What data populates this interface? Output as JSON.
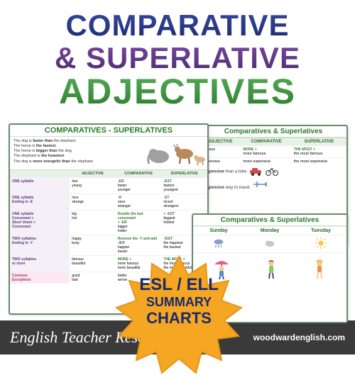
{
  "title": {
    "line1": "COMPARATIVE",
    "line2": "& SUPERLATIVE",
    "line3": "ADJECTIVES",
    "colors": {
      "comparative": "#2a3a8a",
      "superlative": "#5a3a8a",
      "adjectives": "#3a8a3a"
    }
  },
  "starburst": {
    "line1": "ESL / ELL",
    "line2": "SUMMARY",
    "line3": "CHARTS",
    "fill": "#f5a623",
    "stroke": "#d4851a",
    "text_color": "#1a2a6a"
  },
  "chart_front": {
    "header": "COMPARATIVES - SUPERLATIVES",
    "sentences": [
      {
        "pre": "The dog is ",
        "bold": "faster than",
        "post": " the elephant."
      },
      {
        "pre": "The horse is ",
        "bold": "the fastest",
        "post": "."
      },
      {
        "pre": "The horse is ",
        "bold": "bigger than",
        "post": " the dog."
      },
      {
        "pre": "The elephant is ",
        "bold": "the heaviest",
        "post": "."
      },
      {
        "pre": "The dog is ",
        "bold": "more energetic than",
        "post": " the elephant."
      }
    ],
    "columns": [
      "ADJECTIVE",
      "COMPARATIVE",
      "SUPERLATIVE"
    ],
    "rows": [
      {
        "label": "ONE syllable",
        "adj": "fast\nyoung",
        "comp_rule": "-ER",
        "comp": "faster\nyounger",
        "sup_rule": "-EST",
        "sup": "fastest\nyoungest"
      },
      {
        "label": "ONE syllable\nEnding in -E",
        "adj": "nice\nstrange",
        "comp_rule": "-R",
        "comp": "nicer\nstranger",
        "sup_rule": "-ST",
        "sup": "nicest\nstrangest"
      },
      {
        "label": "ONE syllable\nConsonant +\nShort Vowel +\nConsonant",
        "adj": "big\nhot",
        "comp_rule": "Double the last consonant\n+ -ER",
        "comp": "bigger\nhotter",
        "sup_rule": "+ -EST",
        "sup": "biggest\nhottest"
      },
      {
        "label": "TWO syllables\nEnding in -Y",
        "adj": "happy\nbusy",
        "comp_rule": "Remove the -Y and add\n-IER",
        "comp": "happier\nbusier",
        "sup_rule": "-IEST",
        "sup": "the happiest\nthe busiest"
      },
      {
        "label": "TWO syllables\nor more",
        "adj": "famous\nbeautiful",
        "comp_rule": "MORE +",
        "comp": "more famous\nmore beautiful",
        "sup_rule": "THE MOST +",
        "sup": "the most famous\nthe most beautiful"
      },
      {
        "label": "Common\nExceptions",
        "pink": true,
        "adj": "good\nbad",
        "comp": "better\nworse",
        "sup": "best\nworst"
      }
    ]
  },
  "chart_back": {
    "header": "Comparatives & Superlatives",
    "columns": [
      "ADJECTIVE",
      "COMPARATIVE",
      "SUPERLATIVE"
    ],
    "rows": [
      {
        "adj": "famous",
        "comp_rule": "MORE +",
        "comp": "more famous",
        "sup_rule": "THE MOST +",
        "sup": "the most famous"
      },
      {
        "adj": "expensive",
        "comp": "more expensive",
        "sup": "the most expensive"
      }
    ],
    "sent1": {
      "pre": "",
      "bold": "expensive",
      "post": " than a bike."
    },
    "sent2": {
      "pre": "",
      "bold": "expensive",
      "post": " way to travel."
    }
  },
  "chart_mid": {
    "header": "Comparatives & Superlatives",
    "days": [
      "Sunday",
      "Monday",
      "Tuesday"
    ],
    "weather": [
      {
        "type": "rain",
        "fill": "#6a8aca"
      },
      {
        "type": "cloud",
        "fill": "#c0c0c0"
      },
      {
        "type": "sun",
        "fill": "#f5c84a"
      }
    ]
  },
  "footer": {
    "title": "English Teacher Resources",
    "url": "woodwardenglish.com",
    "bg": "#3a3a3a"
  }
}
